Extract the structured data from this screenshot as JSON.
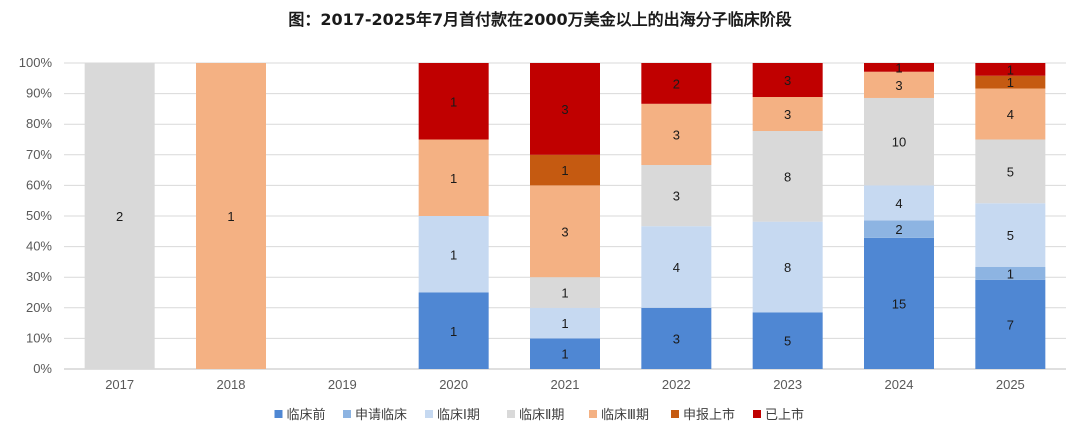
{
  "chart_data": {
    "type": "bar",
    "stacked": true,
    "normalized": true,
    "title": "图：2017-2025年7月首付款在2000万美金以上的出海分子临床阶段",
    "xlabel": "",
    "ylabel": "",
    "ylim": [
      0,
      100
    ],
    "yticks": [
      "0%",
      "10%",
      "20%",
      "30%",
      "40%",
      "50%",
      "60%",
      "70%",
      "80%",
      "90%",
      "100%"
    ],
    "categories": [
      "2017",
      "2018",
      "2019",
      "2020",
      "2021",
      "2022",
      "2023",
      "2024",
      "2025"
    ],
    "series": [
      {
        "name": "临床前",
        "color": "#4F87D3",
        "values": [
          0,
          0,
          0,
          1,
          1,
          3,
          5,
          15,
          7
        ]
      },
      {
        "name": "申请临床",
        "color": "#8DB4E2",
        "values": [
          0,
          0,
          0,
          0,
          0,
          0,
          0,
          2,
          1
        ]
      },
      {
        "name": "临床Ⅰ期",
        "color": "#C6D9F1",
        "values": [
          0,
          0,
          0,
          1,
          1,
          4,
          8,
          4,
          5
        ]
      },
      {
        "name": "临床Ⅱ期",
        "color": "#D9D9D9",
        "values": [
          2,
          0,
          0,
          0,
          1,
          3,
          8,
          10,
          5
        ]
      },
      {
        "name": "临床Ⅲ期",
        "color": "#F4B183",
        "values": [
          0,
          1,
          0,
          1,
          3,
          3,
          3,
          3,
          4
        ]
      },
      {
        "name": "申报上市",
        "color": "#C55A11",
        "values": [
          0,
          0,
          0,
          0,
          1,
          0,
          0,
          0,
          1
        ]
      },
      {
        "name": "已上市",
        "color": "#C00000",
        "values": [
          0,
          0,
          0,
          1,
          3,
          2,
          3,
          1,
          1
        ]
      }
    ],
    "legend_position": "bottom",
    "grid": true
  }
}
